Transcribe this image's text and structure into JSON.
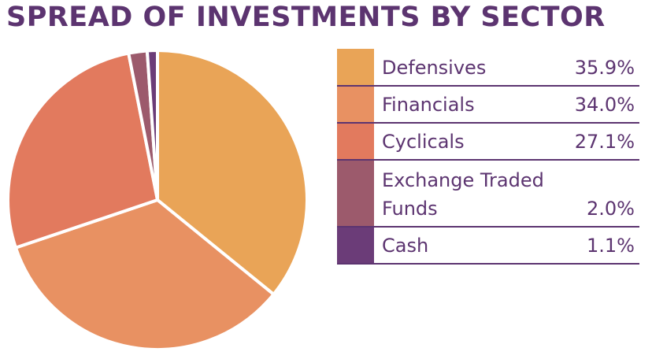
{
  "title": "SPREAD OF INVESTMENTS BY SECTOR",
  "chart_data": {
    "type": "pie",
    "title": "SPREAD OF INVESTMENTS BY SECTOR",
    "legend_position": "right",
    "slices": [
      {
        "label": "Defensives",
        "value": 35.9,
        "value_label": "35.9%",
        "color": "#e9a457"
      },
      {
        "label": "Financials",
        "value": 34.0,
        "value_label": "34.0%",
        "color": "#e89162"
      },
      {
        "label": "Cyclicals",
        "value": 27.1,
        "value_label": "27.1%",
        "color": "#e27a5e"
      },
      {
        "label": "Exchange Traded Funds",
        "value": 2.0,
        "value_label": "2.0%",
        "color": "#9c5a6c"
      },
      {
        "label": "Cash",
        "value": 1.1,
        "value_label": "1.1%",
        "color": "#6b3c78"
      }
    ]
  },
  "colors": {
    "title": "#5c3470",
    "legend_text": "#5c3470",
    "divider": "#5c3470"
  }
}
